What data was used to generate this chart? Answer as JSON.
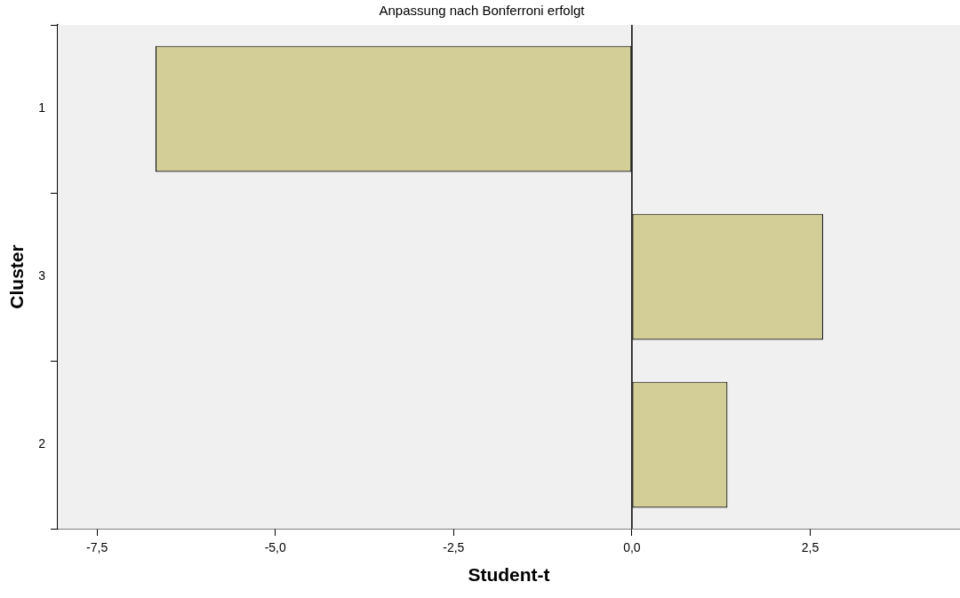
{
  "chart_data": {
    "type": "bar",
    "orientation": "horizontal",
    "title": "Anpassung nach Bonferroni erfolgt",
    "xlabel": "Student-t",
    "ylabel": "Cluster",
    "categories": [
      "1",
      "3",
      "2"
    ],
    "values": [
      -6.68,
      2.68,
      1.34
    ],
    "color": "#d3ce97",
    "xlim": [
      -8.05,
      4.6
    ],
    "xticks": [
      {
        "value": -7.5,
        "label": "-7,5"
      },
      {
        "value": -5,
        "label": "-5,0"
      },
      {
        "value": -2.5,
        "label": "-2,5"
      },
      {
        "value": 0,
        "label": "0,0"
      },
      {
        "value": 2.5,
        "label": "2,5"
      }
    ],
    "ref_lines": [
      {
        "axis": "x",
        "value": 0,
        "color": "#000000"
      }
    ],
    "grid": false,
    "legend": false
  }
}
